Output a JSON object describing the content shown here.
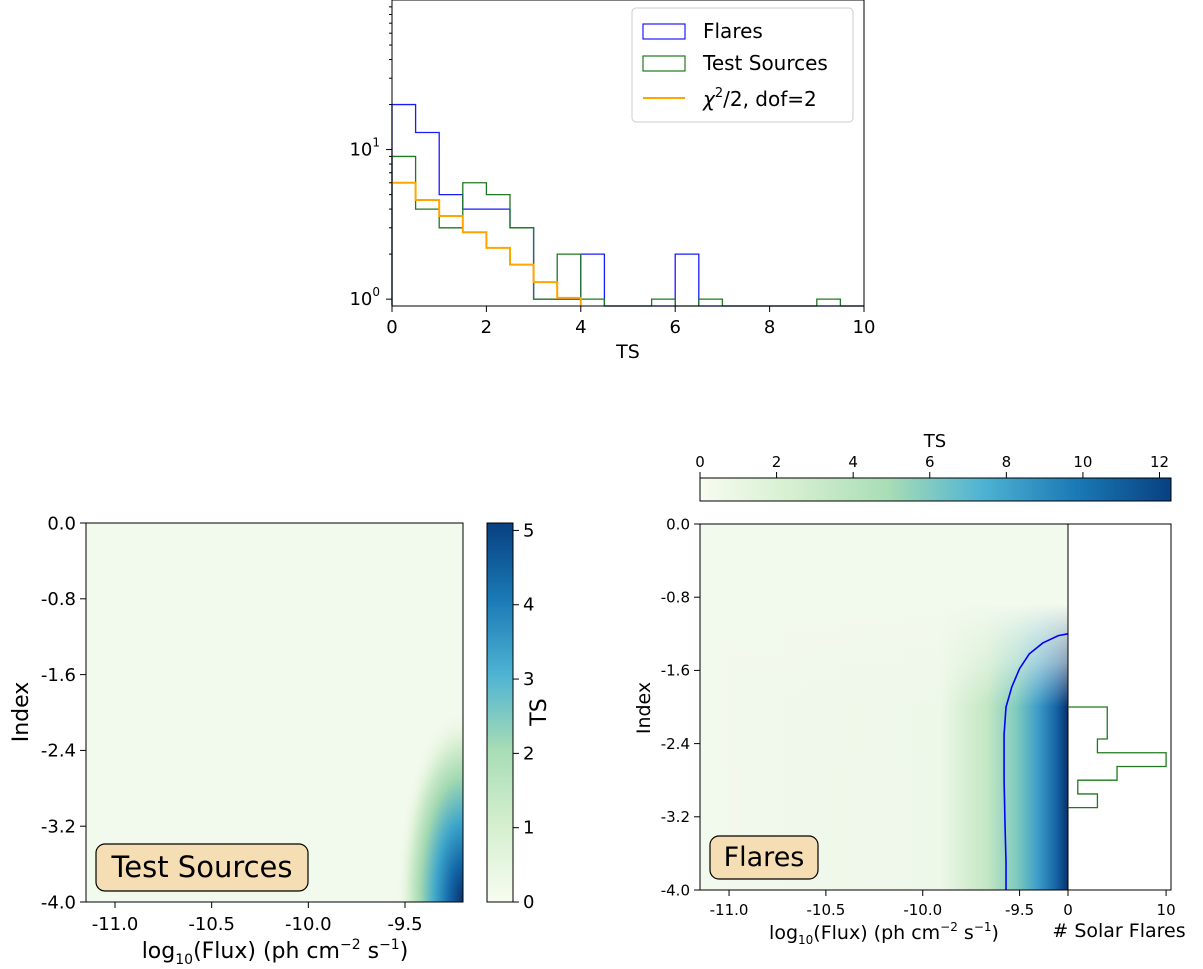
{
  "chart_data": [
    {
      "type": "histogram",
      "xlabel": "TS",
      "xlim": [
        0,
        10
      ],
      "ylim": [
        0.9,
        100
      ],
      "yscale": "log",
      "x_ticks": [
        "0",
        "2",
        "4",
        "6",
        "8",
        "10"
      ],
      "y_ticks": [
        {
          "base": "10",
          "exp": "0"
        },
        {
          "base": "10",
          "exp": "1"
        }
      ],
      "legend_position": "top-right",
      "legend": [
        {
          "key": "flares",
          "label": "Flares"
        },
        {
          "key": "test",
          "label": "Test Sources"
        },
        {
          "key": "chi",
          "label_pre": "χ",
          "label_sup": "2",
          "label_post": "/2, dof=2"
        }
      ],
      "bin_edges": [
        0,
        0.5,
        1,
        1.5,
        2,
        2.5,
        3,
        3.5,
        4,
        4.5,
        5,
        5.5,
        6,
        6.5,
        7,
        7.5,
        8,
        8.5,
        9,
        9.5,
        10
      ],
      "series": [
        {
          "key": "flares",
          "color": "#1a1aff",
          "values": [
            20,
            13,
            5,
            4,
            4,
            3,
            1,
            1,
            2,
            0,
            0,
            0,
            2,
            0,
            0,
            0,
            0,
            0,
            0,
            0
          ]
        },
        {
          "key": "test",
          "color": "#1e7a1e",
          "values": [
            9,
            4,
            3,
            6,
            5,
            3,
            1,
            2,
            1,
            0,
            0,
            1,
            0,
            1,
            0,
            0,
            0,
            0,
            1,
            0
          ]
        },
        {
          "key": "chi",
          "color": "#ffa500",
          "values": [
            6,
            4.6,
            3.6,
            2.8,
            2.2,
            1.7,
            1.3,
            1.02
          ]
        }
      ]
    },
    {
      "type": "heatmap",
      "label": "Test Sources",
      "xlabel": {
        "pre": "log",
        "sub": "10",
        "mid": "(Flux) (ph cm",
        "sup1": "−2",
        "mid2": " s",
        "sup2": "−1",
        "post": ")"
      },
      "ylabel": "Index",
      "xlim": [
        -11.15,
        -9.2
      ],
      "ylim": [
        -4.0,
        0.0
      ],
      "x_ticks": [
        "-11.0",
        "-10.5",
        "-10.0",
        "-9.5"
      ],
      "y_ticks": [
        "0.0",
        "-0.8",
        "-1.6",
        "-2.4",
        "-3.2",
        "-4.0"
      ],
      "colorbar": {
        "label": "TS",
        "range": [
          0,
          5.1
        ],
        "ticks": [
          "0",
          "1",
          "2",
          "3",
          "4",
          "5"
        ]
      },
      "peak_ts": 5.1,
      "peak_location": "bottom-right"
    },
    {
      "type": "heatmap",
      "label": "Flares",
      "xlabel": {
        "pre": "log",
        "sub": "10",
        "mid": "(Flux) (ph cm",
        "sup1": "−2",
        "mid2": " s",
        "sup2": "−1",
        "post": ")"
      },
      "ylabel": "Index",
      "xlim": [
        -11.15,
        -9.25
      ],
      "ylim": [
        -4.0,
        0.0
      ],
      "x_ticks": [
        "-11.0",
        "-10.5",
        "-10.0",
        "-9.5"
      ],
      "y_ticks": [
        "0.0",
        "-0.8",
        "-1.6",
        "-2.4",
        "-3.2",
        "-4.0"
      ],
      "colorbar": {
        "label": "TS",
        "range": [
          0,
          12.3
        ],
        "ticks": [
          "0",
          "2",
          "4",
          "6",
          "8",
          "10",
          "12"
        ],
        "position": "top"
      },
      "contour": {
        "color": "#0000ff",
        "x": [
          -9.25,
          -9.3,
          -9.38,
          -9.45,
          -9.5,
          -9.54,
          -9.57,
          -9.58,
          -9.58,
          -9.575,
          -9.57,
          -9.57
        ],
        "y": [
          -1.2,
          -1.22,
          -1.3,
          -1.42,
          -1.58,
          -1.78,
          -2.0,
          -2.3,
          -2.8,
          -3.3,
          -3.7,
          -4.0
        ]
      },
      "side_histogram": {
        "xlabel": "# Solar Flares",
        "x_ticks": [
          "0",
          "10"
        ],
        "xlim": [
          0,
          10.5
        ],
        "color": "#1e7a1e",
        "bins": [
          {
            "y0": -2.0,
            "y1": -2.15,
            "count": 4
          },
          {
            "y0": -2.15,
            "y1": -2.35,
            "count": 4
          },
          {
            "y0": -2.35,
            "y1": -2.5,
            "count": 3
          },
          {
            "y0": -2.5,
            "y1": -2.65,
            "count": 10
          },
          {
            "y0": -2.65,
            "y1": -2.8,
            "count": 5
          },
          {
            "y0": -2.8,
            "y1": -2.95,
            "count": 1
          },
          {
            "y0": -2.95,
            "y1": -3.1,
            "count": 3
          }
        ]
      }
    }
  ]
}
